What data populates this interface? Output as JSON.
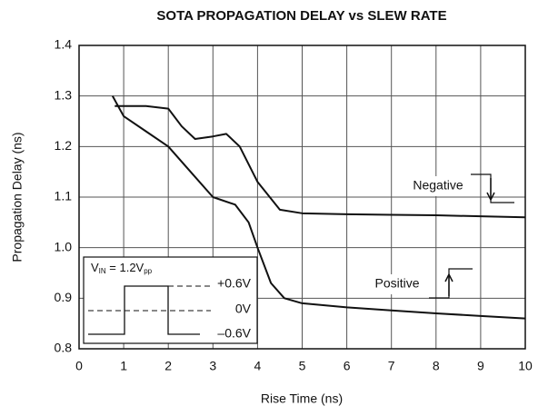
{
  "chart_data": {
    "type": "line",
    "title": "SOTA PROPAGATION DELAY vs SLEW RATE",
    "xlabel": "Rise Time (ns)",
    "ylabel": "Propagation Delay (ns)",
    "xlim": [
      0,
      10
    ],
    "xticks": [
      0,
      1,
      2,
      3,
      4,
      5,
      6,
      7,
      8,
      9,
      10
    ],
    "ylim": [
      0.8,
      1.4
    ],
    "yticks": [
      0.8,
      0.9,
      {
        "value": 1,
        "label": "1.0"
      },
      1.1,
      1.2,
      1.3,
      1.4
    ],
    "grid": true,
    "series": [
      {
        "name": "Negative",
        "color": "#111111",
        "x": [
          0.8,
          1,
          1.5,
          2,
          2.3,
          2.6,
          3,
          3.3,
          3.6,
          4,
          4.5,
          5,
          6,
          7,
          8,
          9,
          10
        ],
        "values": [
          1.28,
          1.28,
          1.28,
          1.275,
          1.24,
          1.215,
          1.22,
          1.225,
          1.2,
          1.13,
          1.075,
          1.068,
          1.066,
          1.065,
          1.064,
          1.062,
          1.06
        ]
      },
      {
        "name": "Positive",
        "color": "#111111",
        "x": [
          0.75,
          1,
          1.5,
          2,
          2.5,
          3,
          3.5,
          3.8,
          4,
          4.3,
          4.6,
          5,
          6,
          7,
          8,
          9,
          10
        ],
        "values": [
          1.3,
          1.26,
          1.23,
          1.2,
          1.15,
          1.1,
          1.085,
          1.05,
          1.0,
          0.93,
          0.9,
          0.89,
          0.882,
          0.876,
          0.87,
          0.865,
          0.86
        ]
      }
    ],
    "inset": {
      "label": [
        "V",
        "IN",
        " = 1.2V",
        "pp"
      ],
      "levels": [
        "+0.6V",
        "0V",
        "–0.6V"
      ]
    }
  }
}
